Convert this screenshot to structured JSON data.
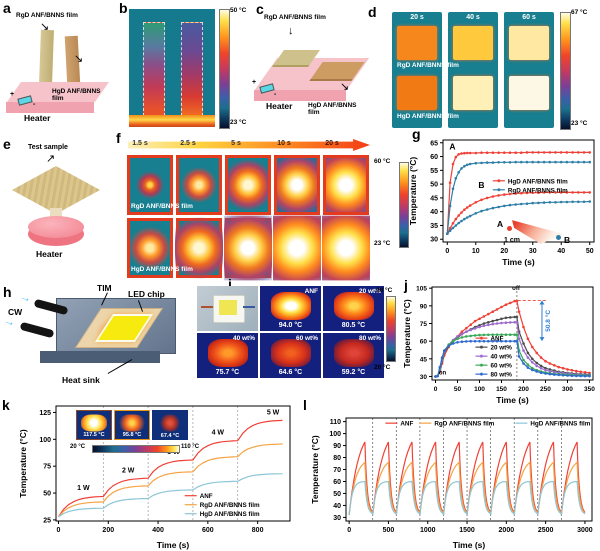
{
  "figure": {
    "bg": "#ffffff"
  },
  "panels": {
    "a": {
      "label": "a",
      "film_top": "RgD ANF/BNNS film",
      "film_bottom": "HgD ANF/BNNS film",
      "heater": "Heater",
      "plus": "+",
      "minus": "-"
    },
    "b": {
      "label": "b",
      "cbar_top": "50 °C",
      "cbar_bottom": "23 °C"
    },
    "c": {
      "label": "c",
      "film_top": "RgD ANF/BNNS film",
      "film_bottom": "HgD ANF/BNNS film",
      "heater": "Heater",
      "plus": "+",
      "minus": "-"
    },
    "d": {
      "label": "d",
      "times": [
        "20 s",
        "40 s",
        "60 s"
      ],
      "row_top": "RgD ANF/BNNS film",
      "row_bottom": "HgD ANF/BNNS film",
      "cbar_top": "67 °C",
      "cbar_bottom": "23 °C"
    },
    "e": {
      "label": "e",
      "sample": "Test sample",
      "heater": "Heater"
    },
    "f": {
      "label": "f",
      "times": [
        "1.5 s",
        "2.5 s",
        "5 s",
        "10 s",
        "20 s"
      ],
      "row_top": "RgD ANF/BNNS film",
      "row_bottom": "HgD ANF/BNNS film",
      "cbar_top": "60 °C",
      "cbar_bottom": "23 °C"
    },
    "g": {
      "label": "g",
      "inset": {
        "a": "A",
        "b": "B",
        "scale": "1 cm"
      }
    },
    "h": {
      "label": "h",
      "cw": "CW",
      "tim": "TIM",
      "led": "LED chip",
      "sink": "Heat sink"
    },
    "i": {
      "label": "i",
      "cells": [
        {
          "tag": "",
          "temp": ""
        },
        {
          "tag": "ANF",
          "temp": "94.0 °C"
        },
        {
          "tag": "20 wt%",
          "temp": "80.5 °C"
        },
        {
          "tag": "40 wt%",
          "temp": "75.7 °C"
        },
        {
          "tag": "60 wt%",
          "temp": "64.6 °C"
        },
        {
          "tag": "80 wt%",
          "temp": "59.2 °C"
        }
      ],
      "cbar_top": "90 °C",
      "cbar_bottom": "20 °C"
    },
    "j": {
      "label": "j"
    },
    "k": {
      "label": "k",
      "inset": {
        "temps": [
          "117.5 °C",
          "95.8 °C",
          "67.4 °C"
        ],
        "cbar_left": "20 °C",
        "cbar_right": "110 °C"
      }
    },
    "l": {
      "label": "l"
    }
  },
  "chart_data": [
    {
      "id": "g",
      "type": "line",
      "xlabel": "Time (s)",
      "ylabel": "Temperature (°C)",
      "xlim": [
        -1.5,
        51.5
      ],
      "ylim": [
        29,
        66
      ],
      "xticks": [
        0,
        10,
        20,
        30,
        40,
        50
      ],
      "yticks": [
        30,
        35,
        40,
        45,
        50,
        55,
        60,
        65
      ],
      "margins": {
        "l": 35,
        "r": 6,
        "t": 6,
        "b": 26
      },
      "tick_size": 7,
      "legend": {
        "x": 0.33,
        "y": 0.4,
        "dir": "v"
      },
      "annotations": [
        {
          "text": "A",
          "x": 1.8,
          "y": 62.5,
          "size": 8.5
        },
        {
          "text": "B",
          "x": 12,
          "y": 48.5,
          "size": 8.5
        }
      ],
      "x": [
        0,
        1,
        2,
        3,
        4,
        5,
        6,
        7,
        8,
        10,
        12,
        14,
        16,
        18,
        20,
        22,
        24,
        26,
        28,
        30,
        32,
        34,
        36,
        38,
        40,
        42,
        44,
        46,
        48,
        50
      ],
      "series": [
        {
          "name": "HgD ANF/BNNS film",
          "color": "#ef4137",
          "markers": true,
          "y": [
            32,
            50.5,
            57.3,
            59.8,
            60.8,
            61.1,
            61.2,
            61.3,
            61.3,
            61.3,
            61.4,
            61.4,
            61.4,
            61.4,
            61.4,
            61.4,
            61.4,
            61.4,
            61.5,
            61.5,
            61.5,
            61.5,
            61.5,
            61.5,
            61.5,
            61.5,
            61.5,
            61.5,
            61.5,
            61.5
          ]
        },
        {
          "name": "RgD ANF/BNNS film",
          "color": "#2e7fa8",
          "markers": true,
          "y": [
            32,
            42.1,
            48.3,
            52.1,
            54.3,
            55.7,
            56.5,
            57,
            57.3,
            57.6,
            57.7,
            57.8,
            57.8,
            57.9,
            57.9,
            57.9,
            58,
            58,
            58,
            58,
            58,
            58,
            58,
            58,
            58,
            58,
            58,
            58,
            58,
            58
          ]
        },
        {
          "color": "#ef4137",
          "markers": true,
          "y": [
            32,
            34,
            35.8,
            37.3,
            38.6,
            39.7,
            40.7,
            41.5,
            42.2,
            43.4,
            44.3,
            45,
            45.5,
            45.9,
            46.2,
            46.4,
            46.6,
            46.7,
            46.8,
            46.9,
            46.9,
            47,
            47,
            47,
            47,
            47,
            47,
            47,
            47,
            47
          ]
        },
        {
          "color": "#2e7fa8",
          "markers": true,
          "y": [
            32,
            33.1,
            34.1,
            35,
            35.9,
            36.6,
            37.3,
            37.9,
            38.4,
            39.4,
            40.2,
            40.8,
            41.3,
            41.7,
            42.1,
            42.4,
            42.6,
            42.8,
            42.9,
            43.1,
            43.2,
            43.3,
            43.4,
            43.4,
            43.5,
            43.5,
            43.6,
            43.6,
            43.6,
            43.7
          ]
        }
      ]
    },
    {
      "id": "j",
      "type": "line",
      "xlabel": "Time (s)",
      "ylabel": "Temperature (°C)",
      "xlim": [
        -8,
        358
      ],
      "ylim": [
        27,
        106
      ],
      "xticks": [
        0,
        50,
        100,
        150,
        200,
        250,
        300,
        350
      ],
      "yticks": [
        30,
        45,
        60,
        75,
        90,
        105
      ],
      "margins": {
        "l": 30,
        "r": 7,
        "t": 5,
        "b": 26
      },
      "tick_size": 6.5,
      "legend": {
        "x": 0.27,
        "y": 0.55,
        "dir": "v"
      },
      "annotations": [
        {
          "text": "on",
          "x": 16,
          "y": 31.5,
          "size": 6
        },
        {
          "text": "off",
          "x": 183,
          "y": 103.5,
          "size": 6
        }
      ],
      "extras": [
        {
          "type": "vline",
          "x": 185,
          "color": "#555"
        },
        {
          "type": "hline",
          "y": 94.5,
          "x1": 187,
          "x2": 255,
          "color": "#ef4137"
        },
        {
          "type": "varrow",
          "x": 242,
          "y1": 94.5,
          "y2": 60,
          "color": "#2e7fd4",
          "label": "50.8 °C"
        }
      ],
      "x": [
        0,
        5,
        10,
        15,
        20,
        30,
        40,
        50,
        60,
        70,
        80,
        90,
        100,
        110,
        120,
        130,
        140,
        150,
        160,
        170,
        180,
        185,
        190,
        200,
        210,
        220,
        230,
        240,
        250,
        260,
        270,
        280,
        290,
        300,
        310,
        320,
        330,
        340,
        350
      ],
      "series": [
        {
          "name": "ANF",
          "color": "#ef4137",
          "markers": true,
          "y": [
            30,
            30.5,
            34,
            41,
            48,
            55,
            60,
            64,
            68,
            71,
            74,
            77,
            79,
            81,
            83,
            85,
            87,
            89,
            91,
            92.5,
            94,
            94,
            85,
            72,
            62,
            55,
            50,
            46,
            43,
            41,
            39.5,
            38,
            37,
            36,
            35.3,
            34.6,
            34,
            33.5,
            33
          ]
        },
        {
          "name": "20 wt%",
          "color": "#4d4d4d",
          "markers": true,
          "y": [
            30,
            30.5,
            35,
            43,
            50,
            56,
            60,
            63,
            66,
            68,
            70,
            72,
            73.5,
            75,
            76,
            77,
            78,
            79,
            79.8,
            80.2,
            80.5,
            80.5,
            68,
            58,
            50,
            45,
            41.5,
            39,
            37,
            36,
            35,
            34,
            33.5,
            33,
            32.6,
            32.3,
            32,
            31.8,
            31.6
          ]
        },
        {
          "name": "40 wt%",
          "color": "#9d6bce",
          "markers": true,
          "y": [
            30,
            30.5,
            36,
            44,
            51,
            57,
            61,
            64,
            66,
            68,
            69.5,
            70.8,
            72,
            73,
            73.8,
            74.5,
            75,
            75.4,
            75.7,
            75.9,
            76,
            76,
            62,
            52,
            46,
            42,
            39,
            37,
            35.5,
            34.5,
            33.8,
            33.2,
            32.8,
            32.4,
            32.1,
            31.8,
            31.6,
            31.4,
            31.2
          ]
        },
        {
          "name": "60 wt%",
          "color": "#3aa857",
          "markers": true,
          "y": [
            30,
            30.5,
            37,
            45,
            52,
            57,
            60,
            62,
            63.2,
            64,
            64.5,
            64.9,
            65.1,
            65.3,
            65.4,
            65.5,
            65.5,
            65.5,
            65.5,
            65.5,
            65.5,
            65.5,
            52,
            44,
            40,
            37,
            35.3,
            34.2,
            33.4,
            32.8,
            32.3,
            32,
            31.7,
            31.5,
            31.3,
            31.1,
            31,
            30.9,
            30.8
          ]
        },
        {
          "name": "80 wt%",
          "color": "#2f6bce",
          "markers": true,
          "y": [
            30,
            30.5,
            38,
            46,
            52,
            56,
            58,
            59,
            59.5,
            59.8,
            60,
            60,
            60,
            60,
            60,
            60,
            60,
            60,
            60,
            60,
            60,
            60,
            47,
            41,
            37.5,
            35.5,
            34.2,
            33.2,
            32.5,
            32,
            31.6,
            31.3,
            31,
            30.8,
            30.6,
            30.5,
            30.4,
            30.3,
            30.3
          ]
        }
      ]
    },
    {
      "id": "k",
      "type": "line",
      "xlabel": "Time (s)",
      "ylabel": "Temperature (°C)",
      "xlim": [
        -10,
        930
      ],
      "ylim": [
        24,
        131
      ],
      "xticks": [
        0,
        200,
        400,
        600,
        800
      ],
      "yticks": [
        25,
        50,
        75,
        100,
        125
      ],
      "margins": {
        "l": 38,
        "r": 10,
        "t": 6,
        "b": 30
      },
      "tick_size": 7,
      "legend": {
        "x": 0.55,
        "y": 0.78,
        "dir": "v"
      },
      "annotations": [
        {
          "text": "1 W",
          "x": 100,
          "y": 53,
          "size": 7
        },
        {
          "text": "2 W",
          "x": 280,
          "y": 69,
          "size": 7
        },
        {
          "text": "3 W",
          "x": 462,
          "y": 86.5,
          "size": 7
        },
        {
          "text": "4 W",
          "x": 640,
          "y": 104.5,
          "size": 7
        },
        {
          "text": "5 W",
          "x": 862,
          "y": 123,
          "size": 7
        }
      ],
      "extras": [
        {
          "type": "vline",
          "x": 180,
          "color": "#999"
        },
        {
          "type": "vline",
          "x": 360,
          "color": "#999"
        },
        {
          "type": "vline",
          "x": 540,
          "color": "#999"
        },
        {
          "type": "vline",
          "x": 720,
          "color": "#999"
        }
      ],
      "x": [
        0,
        20,
        40,
        60,
        80,
        100,
        120,
        140,
        160,
        180,
        200,
        220,
        240,
        260,
        280,
        300,
        320,
        340,
        360,
        380,
        400,
        420,
        440,
        460,
        480,
        500,
        520,
        540,
        560,
        580,
        600,
        620,
        640,
        660,
        680,
        700,
        720,
        740,
        760,
        780,
        800,
        820,
        840,
        860,
        880,
        900
      ],
      "series": [
        {
          "name": "ANF",
          "color": "#ef4137",
          "y": [
            28,
            34.8,
            39.2,
            41.9,
            43.8,
            45,
            45.8,
            46.3,
            46.6,
            46.8,
            52.9,
            56.9,
            59.4,
            61.1,
            62.2,
            62.9,
            63.3,
            63.6,
            63.8,
            69.9,
            73.9,
            76.4,
            78.1,
            79.2,
            79.9,
            80.3,
            80.6,
            80.8,
            87.2,
            91.5,
            94.1,
            95.9,
            97,
            97.8,
            98.2,
            98.5,
            98.7,
            105.5,
            110,
            112.8,
            114.6,
            115.8,
            116.6,
            117.1,
            117.4,
            117.6
          ]
        },
        {
          "name": "RgD ANF/BNNS film",
          "color": "#f5a342",
          "y": [
            28,
            33,
            36.2,
            38.2,
            39.6,
            40.5,
            41,
            41.4,
            41.6,
            41.8,
            47.2,
            50.7,
            52.9,
            54.4,
            55.3,
            55.9,
            56.3,
            56.6,
            56.7,
            61.5,
            64.5,
            66.4,
            67.7,
            68.5,
            69.1,
            69.4,
            69.6,
            69.8,
            74.9,
            78.1,
            80.2,
            81.6,
            82.5,
            83,
            83.4,
            83.6,
            83.8,
            88.2,
            90.9,
            92.6,
            93.8,
            94.5,
            95,
            95.3,
            95.5,
            95.6
          ]
        },
        {
          "name": "HgD ANF/BNNS film",
          "color": "#8cc6d8",
          "y": [
            28,
            30.9,
            32.7,
            33.9,
            34.7,
            35.2,
            35.5,
            35.7,
            35.8,
            35.9,
            39.2,
            41.3,
            42.6,
            43.5,
            44.1,
            44.4,
            44.7,
            44.8,
            44.9,
            47.8,
            49.7,
            50.8,
            51.6,
            52.1,
            52.5,
            52.7,
            52.8,
            52.9,
            55.8,
            57.7,
            58.8,
            59.6,
            60.1,
            60.5,
            60.7,
            60.8,
            60.9,
            63.4,
            65.1,
            66.2,
            66.9,
            67.3,
            67.6,
            67.8,
            67.9,
            67.9
          ]
        }
      ]
    },
    {
      "id": "l",
      "type": "line",
      "xlabel": "Time (s)",
      "ylabel": "Temperature (°C)",
      "xlim": [
        -40,
        3090
      ],
      "ylim": [
        27,
        113
      ],
      "xticks": [
        0,
        500,
        1000,
        1500,
        2000,
        2500,
        3000
      ],
      "yticks": [
        30,
        40,
        50,
        60,
        70,
        80,
        90,
        100,
        110
      ],
      "margins": {
        "l": 36,
        "r": 8,
        "t": 16,
        "b": 30
      },
      "tick_size": 7,
      "legend": {
        "x": 0.16,
        "y": 0.05,
        "dir": "h",
        "offsets": [
          0,
          34,
          130
        ]
      },
      "extras": [
        {
          "type": "vline",
          "x": 300,
          "color": "#555"
        },
        {
          "type": "vline",
          "x": 600,
          "color": "#555"
        },
        {
          "type": "vline",
          "x": 900,
          "color": "#555"
        },
        {
          "type": "vline",
          "x": 1200,
          "color": "#555"
        },
        {
          "type": "vline",
          "x": 1500,
          "color": "#555"
        },
        {
          "type": "vline",
          "x": 1800,
          "color": "#555"
        },
        {
          "type": "vline",
          "x": 2100,
          "color": "#555"
        },
        {
          "type": "vline",
          "x": 2400,
          "color": "#555"
        },
        {
          "type": "vline",
          "x": 2700,
          "color": "#555"
        }
      ],
      "series": [
        {
          "name": "ANF",
          "color": "#ef4137",
          "cycle": {
            "base": 32,
            "peak": 93,
            "rise": 200,
            "fall": 100,
            "period": 300,
            "cycles": 10,
            "sharp": 1.6
          }
        },
        {
          "name": "RgD ANF/BNNS film",
          "color": "#f5a342",
          "cycle": {
            "base": 32,
            "peak": 76,
            "rise": 200,
            "fall": 100,
            "period": 300,
            "cycles": 10,
            "sharp": 2.4
          }
        },
        {
          "name": "HgD ANF/BNNS film",
          "color": "#8cc6d8",
          "cycle": {
            "base": 32,
            "peak": 60,
            "rise": 200,
            "fall": 100,
            "period": 300,
            "cycles": 10,
            "sharp": 5
          }
        }
      ]
    }
  ]
}
